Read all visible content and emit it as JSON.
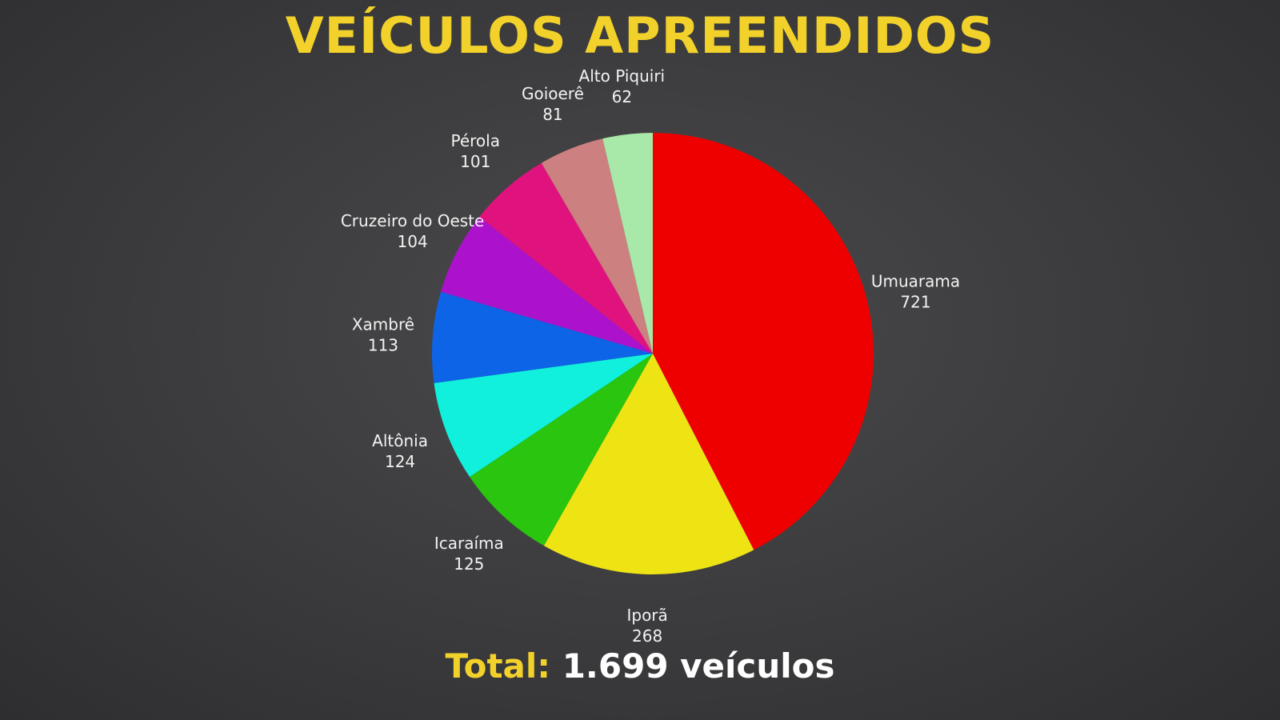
{
  "title": "VEÍCULOS APREENDIDOS",
  "total": {
    "label": "Total:",
    "value": "1.699 veículos"
  },
  "colors": {
    "background": "#3a3a3c",
    "title": "#f2d22a",
    "label_text": "#f2f2f2"
  },
  "chart_data": {
    "type": "pie",
    "start": "12 o'clock",
    "direction": "clockwise",
    "slices": [
      {
        "name": "Umuarama",
        "value": 721,
        "color": "#ee0000"
      },
      {
        "name": "Iporã",
        "value": 268,
        "color": "#eee414"
      },
      {
        "name": "Icaraíma",
        "value": 125,
        "color": "#2ac50e"
      },
      {
        "name": "Altônia",
        "value": 124,
        "color": "#10f0dc"
      },
      {
        "name": "Xambrê",
        "value": 113,
        "color": "#0e64e6"
      },
      {
        "name": "Cruzeiro do Oeste",
        "value": 104,
        "color": "#ac12cc"
      },
      {
        "name": "Pérola",
        "value": 101,
        "color": "#e0137e"
      },
      {
        "name": "Goioerê",
        "value": 81,
        "color": "#cc8080"
      },
      {
        "name": "Alto Piquiri",
        "value": 62,
        "color": "#a8e8a8"
      }
    ]
  }
}
